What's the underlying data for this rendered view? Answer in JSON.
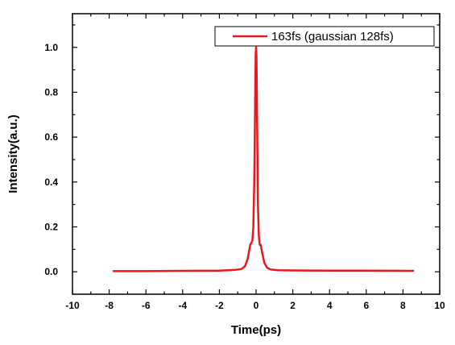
{
  "chart_data": {
    "type": "line",
    "xlabel": "Time(ps)",
    "ylabel": "Intensity(a.u.)",
    "xlim": [
      -10,
      10
    ],
    "ylim": [
      -0.1,
      1.15
    ],
    "x_ticks": [
      -10,
      -8,
      -6,
      -4,
      -2,
      0,
      2,
      4,
      6,
      8,
      10
    ],
    "x_tick_labels": [
      "-10",
      "-8",
      "-6",
      "-4",
      "-2",
      "0",
      "2",
      "4",
      "6",
      "8",
      "10"
    ],
    "y_ticks": [
      0.0,
      0.2,
      0.4,
      0.6,
      0.8,
      1.0
    ],
    "y_tick_labels": [
      "0.0",
      "0.2",
      "0.4",
      "0.6",
      "0.8",
      "1.0"
    ],
    "grid": false,
    "legend_position": "top-right",
    "series": [
      {
        "name": "163fs (gaussian 128fs)",
        "color": "#e8191c",
        "x": [
          -7.8,
          -6,
          -4,
          -2,
          -1.2,
          -0.8,
          -0.6,
          -0.45,
          -0.32,
          -0.25,
          -0.2,
          -0.15,
          -0.1,
          -0.07,
          -0.04,
          -0.02,
          0,
          0.02,
          0.04,
          0.07,
          0.1,
          0.15,
          0.2,
          0.25,
          0.32,
          0.45,
          0.6,
          0.8,
          1.2,
          2,
          4,
          6,
          8.6
        ],
        "y": [
          0.003,
          0.003,
          0.004,
          0.005,
          0.008,
          0.012,
          0.025,
          0.06,
          0.12,
          0.13,
          0.14,
          0.2,
          0.4,
          0.6,
          0.85,
          0.97,
          1.0,
          0.96,
          0.82,
          0.55,
          0.3,
          0.16,
          0.12,
          0.12,
          0.09,
          0.04,
          0.018,
          0.01,
          0.007,
          0.006,
          0.005,
          0.005,
          0.004
        ]
      }
    ]
  }
}
